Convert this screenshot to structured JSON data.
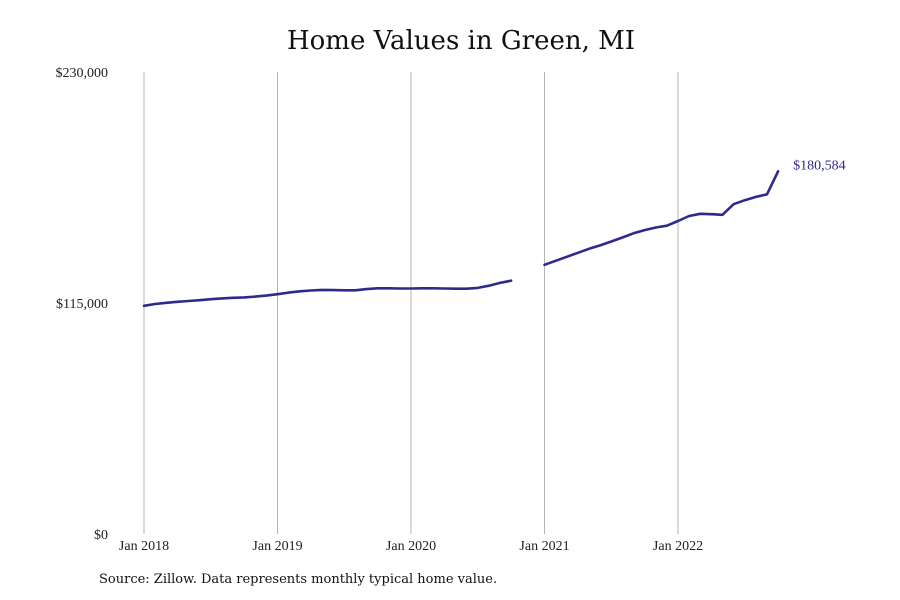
{
  "chart_data": {
    "type": "line",
    "title": "Home Values in Green, MI",
    "xlabel": "",
    "ylabel": "",
    "ylim": [
      0,
      230000
    ],
    "y_ticks": [
      {
        "value": 0,
        "label": "$0"
      },
      {
        "value": 115000,
        "label": "$115,000"
      },
      {
        "value": 230000,
        "label": "$230,000"
      }
    ],
    "x_ticks": [
      {
        "value": "2018-01",
        "label": "Jan 2018"
      },
      {
        "value": "2019-01",
        "label": "Jan 2019"
      },
      {
        "value": "2020-01",
        "label": "Jan 2020"
      },
      {
        "value": "2021-01",
        "label": "Jan 2021"
      },
      {
        "value": "2022-01",
        "label": "Jan 2022"
      }
    ],
    "grid": {
      "vertical": true,
      "horizontal": false
    },
    "line_color": "#2e2a8c",
    "end_label": "$180,584",
    "series": [
      {
        "x": [
          "2018-01",
          "2018-02",
          "2018-03",
          "2018-04",
          "2018-05",
          "2018-06",
          "2018-07",
          "2018-08",
          "2018-09",
          "2018-10",
          "2018-11",
          "2018-12",
          "2019-01",
          "2019-02",
          "2019-03",
          "2019-04",
          "2019-05",
          "2019-06",
          "2019-07",
          "2019-08",
          "2019-09",
          "2019-10",
          "2019-11",
          "2019-12",
          "2020-01",
          "2020-02",
          "2020-03",
          "2020-04",
          "2020-05",
          "2020-06",
          "2020-07",
          "2020-08",
          "2020-09",
          "2020-10",
          "2020-11",
          "2020-12",
          "2021-01",
          "2021-02",
          "2021-03",
          "2021-04",
          "2021-05",
          "2021-06",
          "2021-07",
          "2021-08",
          "2021-09",
          "2021-10",
          "2021-11",
          "2021-12",
          "2022-01",
          "2022-02",
          "2022-03",
          "2022-04",
          "2022-05",
          "2022-06",
          "2022-07",
          "2022-08",
          "2022-09",
          "2022-10"
        ],
        "values": [
          113600,
          114500,
          115100,
          115600,
          116000,
          116400,
          116900,
          117300,
          117600,
          117800,
          118200,
          118700,
          119400,
          120200,
          120800,
          121200,
          121500,
          121400,
          121300,
          121300,
          121900,
          122300,
          122300,
          122200,
          122200,
          122300,
          122300,
          122200,
          122100,
          122100,
          122500,
          123600,
          125000,
          126100,
          null,
          null,
          134000,
          136000,
          138000,
          140000,
          142000,
          143700,
          145600,
          147600,
          149700,
          151300,
          152600,
          153500,
          155800,
          158300,
          159400,
          159200,
          158900,
          164200,
          166200,
          167800,
          169100,
          180584
        ]
      }
    ]
  },
  "footer": {
    "source": "Source: Zillow. Data represents monthly typical home value."
  }
}
